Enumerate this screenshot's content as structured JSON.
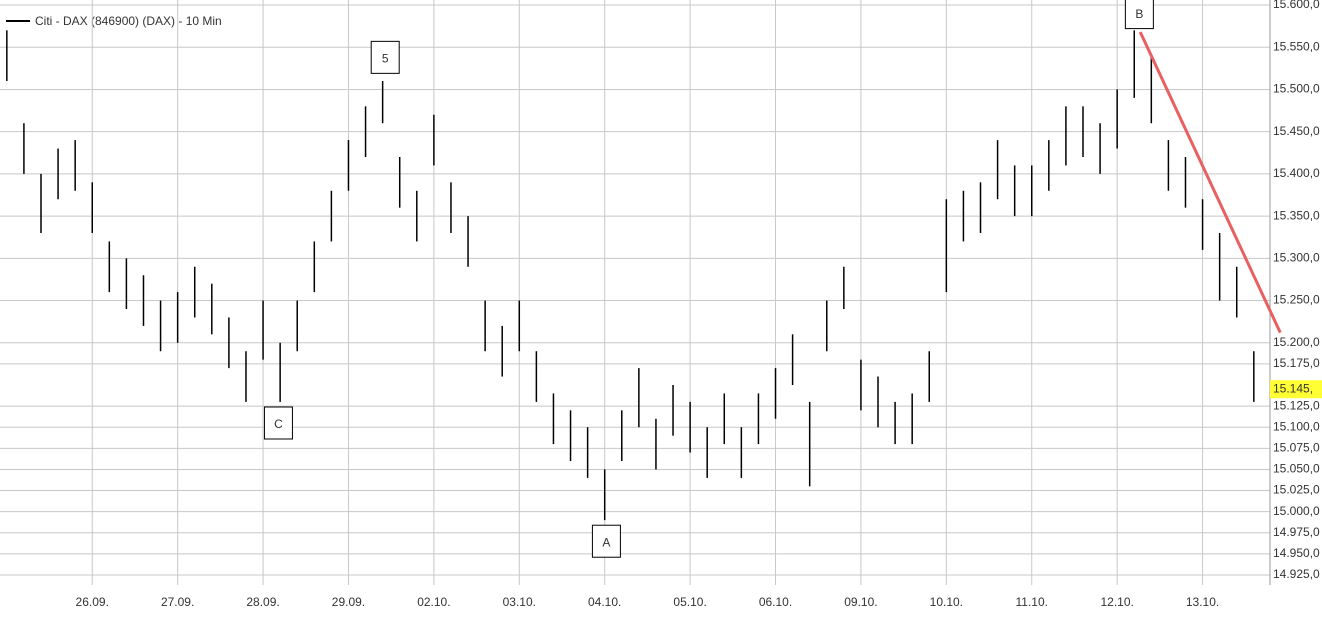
{
  "chart_data": {
    "type": "stock",
    "legend": "Citi - DAX (846900) (DAX) - 10 Min",
    "grid": true,
    "xlim": [
      -1.08,
      13.93
    ],
    "xticks": [
      {
        "value": 0,
        "label": "26.09."
      },
      {
        "value": 1,
        "label": "27.09."
      },
      {
        "value": 2,
        "label": "28.09."
      },
      {
        "value": 3,
        "label": "29.09."
      },
      {
        "value": 4,
        "label": "02.10."
      },
      {
        "value": 5,
        "label": "03.10."
      },
      {
        "value": 6,
        "label": "04.10."
      },
      {
        "value": 7,
        "label": "05.10."
      },
      {
        "value": 8,
        "label": "06.10."
      },
      {
        "value": 9,
        "label": "09.10."
      },
      {
        "value": 10,
        "label": "10.10."
      },
      {
        "value": 11,
        "label": "11.10."
      },
      {
        "value": 12,
        "label": "12.10."
      },
      {
        "value": 13,
        "label": "13.10."
      }
    ],
    "ylim": [
      14925,
      15600
    ],
    "yticks": [
      {
        "value": 14925,
        "label": "14.925,0"
      },
      {
        "value": 14950,
        "label": "14.950,0"
      },
      {
        "value": 14975,
        "label": "14.975,0"
      },
      {
        "value": 15000,
        "label": "15.000,0"
      },
      {
        "value": 15025,
        "label": "15.025,0"
      },
      {
        "value": 15050,
        "label": "15.050,0"
      },
      {
        "value": 15075,
        "label": "15.075,0"
      },
      {
        "value": 15100,
        "label": "15.100,0"
      },
      {
        "value": 15125,
        "label": "15.125,0"
      },
      {
        "value": 15175,
        "label": "15.175,0"
      },
      {
        "value": 15200,
        "label": "15.200,0"
      },
      {
        "value": 15250,
        "label": "15.250,0"
      },
      {
        "value": 15300,
        "label": "15.300,0"
      },
      {
        "value": 15350,
        "label": "15.350,0"
      },
      {
        "value": 15400,
        "label": "15.400,0"
      },
      {
        "value": 15450,
        "label": "15.450,0"
      },
      {
        "value": 15500,
        "label": "15.500,0"
      },
      {
        "value": 15550,
        "label": "15.550,0"
      },
      {
        "value": 15600,
        "label": "15.600,0"
      }
    ],
    "x": [
      -1.0,
      -0.8,
      -0.6,
      -0.4,
      -0.2,
      0.0,
      0.2,
      0.4,
      0.6,
      0.8,
      1.0,
      1.2,
      1.4,
      1.6,
      1.8,
      2.0,
      2.2,
      2.4,
      2.6,
      2.8,
      3.0,
      3.2,
      3.4,
      3.6,
      3.8,
      4.0,
      4.2,
      4.4,
      4.6,
      4.8,
      5.0,
      5.2,
      5.4,
      5.6,
      5.8,
      6.0,
      6.2,
      6.4,
      6.6,
      6.8,
      7.0,
      7.2,
      7.4,
      7.6,
      7.8,
      8.0,
      8.2,
      8.4,
      8.6,
      8.8,
      9.0,
      9.2,
      9.4,
      9.6,
      9.8,
      10.0,
      10.2,
      10.4,
      10.6,
      10.8,
      11.0,
      11.2,
      11.4,
      11.6,
      11.8,
      12.0,
      12.2,
      12.4,
      12.6,
      12.8,
      13.0,
      13.2,
      13.4,
      13.6
    ],
    "series": [
      {
        "color": "#000000",
        "highs": [
          15570,
          15460,
          15400,
          15430,
          15440,
          15390,
          15320,
          15300,
          15280,
          15250,
          15260,
          15290,
          15270,
          15230,
          15190,
          15250,
          15200,
          15250,
          15320,
          15380,
          15440,
          15480,
          15510,
          15420,
          15380,
          15470,
          15390,
          15350,
          15250,
          15220,
          15250,
          15190,
          15140,
          15120,
          15100,
          15050,
          15120,
          15170,
          15110,
          15150,
          15130,
          15100,
          15140,
          15100,
          15140,
          15170,
          15210,
          15130,
          15250,
          15290,
          15180,
          15160,
          15130,
          15140,
          15190,
          15370,
          15380,
          15390,
          15440,
          15410,
          15410,
          15440,
          15480,
          15480,
          15460,
          15500,
          15570,
          15540,
          15440,
          15420,
          15370,
          15330,
          15290,
          15190
        ],
        "lows": [
          15510,
          15400,
          15330,
          15370,
          15380,
          15330,
          15260,
          15240,
          15220,
          15190,
          15200,
          15230,
          15210,
          15170,
          15130,
          15180,
          15130,
          15190,
          15260,
          15320,
          15380,
          15420,
          15460,
          15360,
          15320,
          15410,
          15330,
          15290,
          15190,
          15160,
          15190,
          15130,
          15080,
          15060,
          15040,
          14990,
          15060,
          15100,
          15050,
          15090,
          15070,
          15040,
          15080,
          15040,
          15080,
          15110,
          15150,
          15030,
          15190,
          15240,
          15120,
          15100,
          15080,
          15080,
          15130,
          15260,
          15320,
          15330,
          15370,
          15350,
          15350,
          15380,
          15410,
          15420,
          15400,
          15430,
          15490,
          15460,
          15380,
          15360,
          15310,
          15250,
          15230,
          15130
        ]
      }
    ],
    "last_price": {
      "value": 15145,
      "label": "15.145,",
      "color": "#ffff33"
    },
    "trendline": {
      "x": [
        12.27,
        13.91
      ],
      "y": [
        15568,
        15212
      ],
      "color": "#e86060"
    },
    "annotations": [
      {
        "text": "5",
        "x": 3.43,
        "y": 15538,
        "color": "#22aa22"
      },
      {
        "text": "C",
        "x": 2.18,
        "y": 15105,
        "color": "#aa1111"
      },
      {
        "text": "A",
        "x": 6.02,
        "y": 14965,
        "color": "#aa1111"
      },
      {
        "text": "B",
        "x": 12.26,
        "y": 15591,
        "color": "#aa1111"
      }
    ]
  }
}
